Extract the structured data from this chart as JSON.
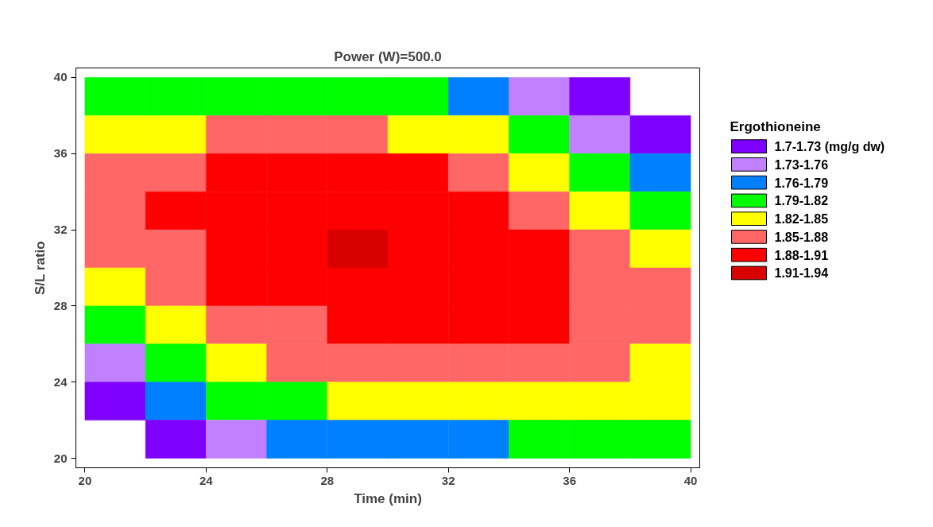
{
  "chart_data": {
    "type": "heatmap",
    "title": "Power (W)=500.0",
    "xlabel": "Time (min)",
    "ylabel": "S/L ratio",
    "clabel": "Ergothioneine",
    "x": [
      21,
      23,
      25,
      27,
      29,
      31,
      33,
      35,
      37,
      39
    ],
    "y": [
      39,
      37,
      35,
      33,
      31,
      29,
      27,
      25,
      23,
      21
    ],
    "cells": [
      [
        1.805,
        1.805,
        1.805,
        1.805,
        1.805,
        1.805,
        1.775,
        1.745,
        1.715,
        null
      ],
      [
        1.835,
        1.835,
        1.865,
        1.865,
        1.865,
        1.835,
        1.835,
        1.805,
        1.745,
        1.715
      ],
      [
        1.865,
        1.865,
        1.895,
        1.895,
        1.895,
        1.895,
        1.865,
        1.835,
        1.805,
        1.775
      ],
      [
        1.865,
        1.895,
        1.895,
        1.895,
        1.895,
        1.895,
        1.895,
        1.865,
        1.835,
        1.805
      ],
      [
        1.865,
        1.865,
        1.895,
        1.895,
        1.925,
        1.895,
        1.895,
        1.895,
        1.865,
        1.835
      ],
      [
        1.835,
        1.865,
        1.895,
        1.895,
        1.895,
        1.895,
        1.895,
        1.895,
        1.865,
        1.865
      ],
      [
        1.805,
        1.835,
        1.865,
        1.865,
        1.895,
        1.895,
        1.895,
        1.895,
        1.865,
        1.865
      ],
      [
        1.745,
        1.805,
        1.835,
        1.865,
        1.865,
        1.865,
        1.865,
        1.865,
        1.865,
        1.835
      ],
      [
        1.715,
        1.775,
        1.805,
        1.805,
        1.835,
        1.835,
        1.835,
        1.835,
        1.835,
        1.835
      ],
      [
        null,
        1.715,
        1.745,
        1.775,
        1.775,
        1.775,
        1.775,
        1.805,
        1.805,
        1.805
      ]
    ],
    "clim": [
      1.7,
      1.94
    ],
    "cticks": [
      {
        "value": 1.715,
        "label": "1.7-1.73 (mg/g dw)"
      },
      {
        "value": 1.745,
        "label": "1.73-1.76"
      },
      {
        "value": 1.775,
        "label": "1.76-1.79"
      },
      {
        "value": 1.805,
        "label": "1.79-1.82"
      },
      {
        "value": 1.835,
        "label": "1.82-1.85"
      },
      {
        "value": 1.865,
        "label": "1.85-1.88"
      },
      {
        "value": 1.895,
        "label": "1.88-1.91"
      },
      {
        "value": 1.925,
        "label": "1.91-1.94"
      }
    ],
    "colors": [
      "#8000ff",
      "#c080ff",
      "#0080ff",
      "#00ff00",
      "#ffff00",
      "#ff6666",
      "#ff0000",
      "#d90000"
    ],
    "xlim": [
      19.7,
      40.3
    ],
    "ylim": [
      19.5,
      40.5
    ],
    "xticks": [
      20,
      24,
      28,
      32,
      36,
      40
    ],
    "yticks": [
      20,
      24,
      28,
      32,
      36,
      40
    ]
  }
}
